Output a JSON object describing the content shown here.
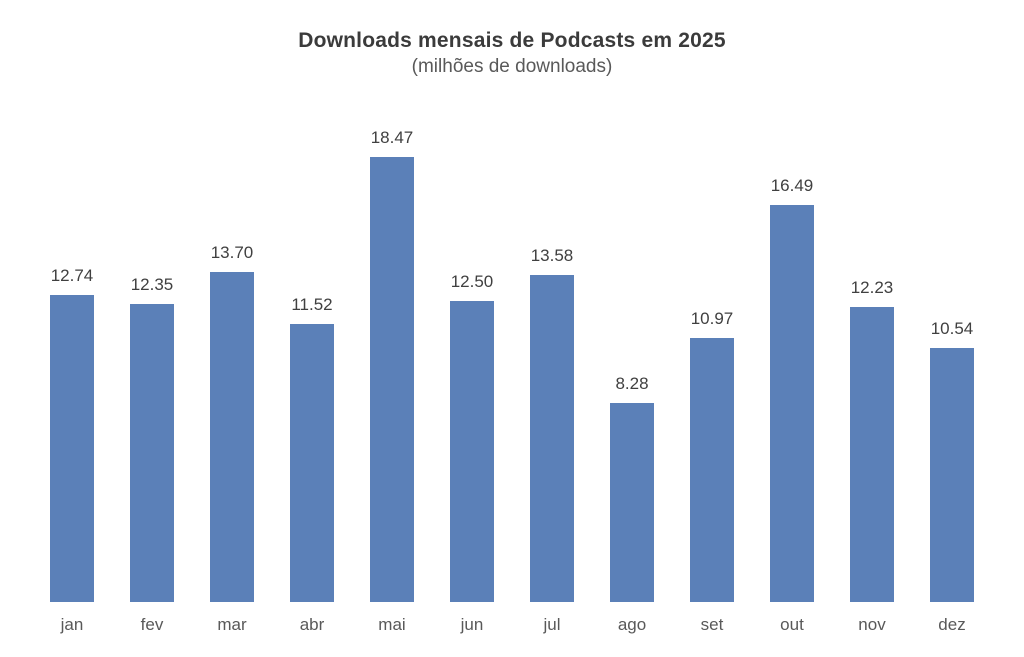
{
  "chart_data": {
    "type": "bar",
    "title": "Downloads mensais de Podcasts em 2025",
    "subtitle": "(milhões de downloads)",
    "categories": [
      "jan",
      "fev",
      "mar",
      "abr",
      "mai",
      "jun",
      "jul",
      "ago",
      "set",
      "out",
      "nov",
      "dez"
    ],
    "values": [
      12.74,
      12.35,
      13.7,
      11.52,
      18.47,
      12.5,
      13.58,
      8.28,
      10.97,
      16.49,
      12.23,
      10.54
    ],
    "value_labels": [
      "12.74",
      "12.35",
      "13.70",
      "11.52",
      "18.47",
      "12.50",
      "13.58",
      "8.28",
      "10.97",
      "16.49",
      "12.23",
      "10.54"
    ],
    "bar_color": "#5b80b8",
    "value_label_color": "#404040",
    "axis_label_color": "#595959",
    "ylim": [
      0,
      20
    ],
    "grid": false,
    "legend": false,
    "x_axis_line": false,
    "y_axis_line": false
  }
}
